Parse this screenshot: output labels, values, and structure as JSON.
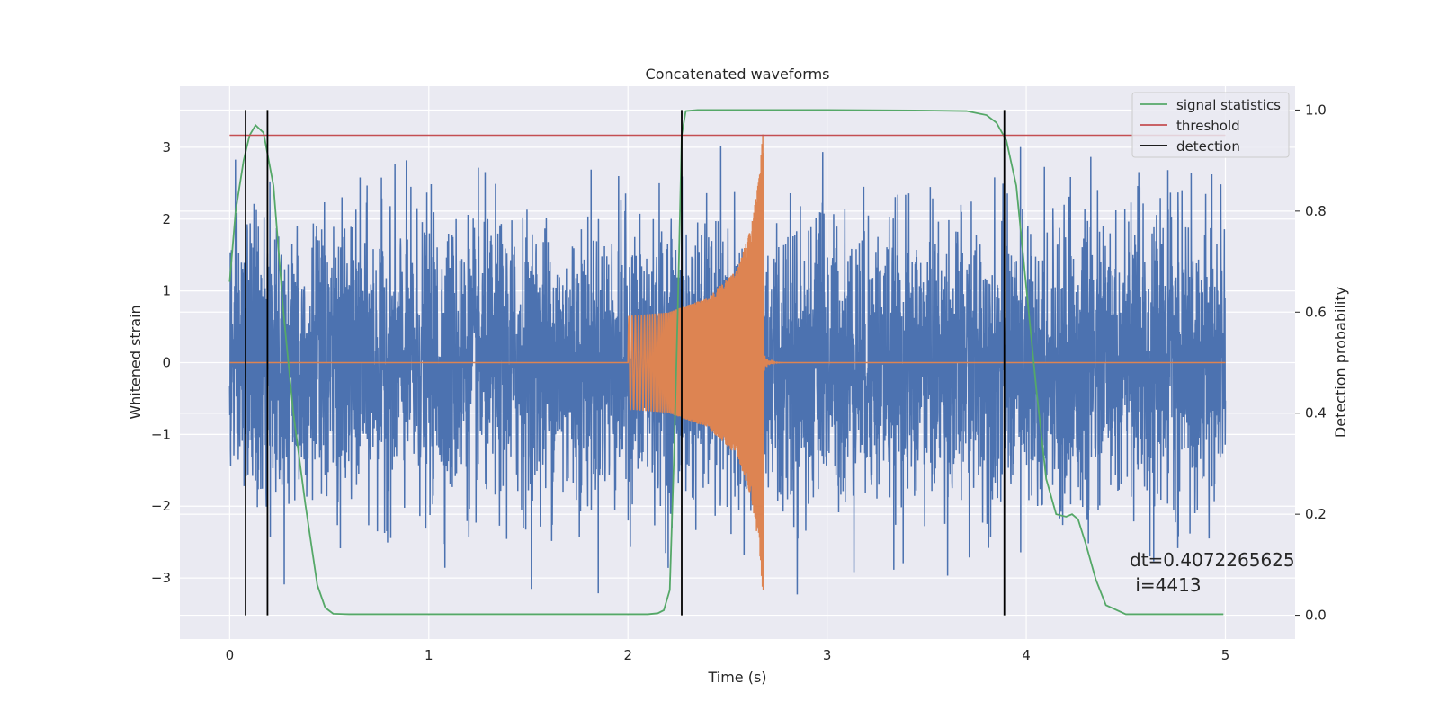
{
  "chart_data": {
    "type": "line",
    "title": "Concatenated waveforms",
    "xlabel": "Time (s)",
    "ylabel": "Whitened strain",
    "y2label": "Detection probability",
    "xlim": [
      -0.25,
      5.35
    ],
    "ylim": [
      -3.85,
      3.85
    ],
    "y2lim": [
      -0.047,
      1.047
    ],
    "xticks": [
      0,
      1,
      2,
      3,
      4,
      5
    ],
    "yticks": [
      -3,
      -2,
      -1,
      0,
      1,
      2,
      3
    ],
    "y2ticks": [
      0.0,
      0.2,
      0.4,
      0.6,
      0.8,
      1.0
    ],
    "xtick_labels": [
      "0",
      "1",
      "2",
      "3",
      "4",
      "5"
    ],
    "ytick_labels": [
      "−3",
      "−2",
      "−1",
      "0",
      "1",
      "2",
      "3"
    ],
    "y2tick_labels": [
      "0.0",
      "0.2",
      "0.4",
      "0.6",
      "0.8",
      "1.0"
    ],
    "grid": true,
    "legend_placement": "top-right",
    "legend": [
      "signal statistics",
      "threshold",
      "detection"
    ],
    "colors": {
      "noise": "#4c72b0",
      "injection": "#dd8452",
      "signal_statistics": "#55a868",
      "threshold": "#c44e52",
      "detection": "#000000",
      "background": "#eaeaf2",
      "grid": "#ffffff"
    },
    "noise_series": {
      "name": "",
      "x_range": [
        0,
        5
      ],
      "approx_y_range": [
        -3.5,
        3.1
      ]
    },
    "injection_series": {
      "name": "",
      "x_range": [
        2.0,
        2.68
      ],
      "envelope_x": [
        2.0,
        2.2,
        2.4,
        2.55,
        2.62,
        2.66,
        2.68
      ],
      "envelope_amp": [
        0.65,
        0.7,
        0.9,
        1.3,
        1.9,
        2.6,
        3.3
      ]
    },
    "series": [
      {
        "name": "signal statistics",
        "axis": "right",
        "x": [
          0.0,
          0.03,
          0.07,
          0.1,
          0.13,
          0.17,
          0.22,
          0.27,
          0.32,
          0.38,
          0.44,
          0.48,
          0.52,
          0.6,
          1.0,
          1.5,
          2.0,
          2.1,
          2.15,
          2.18,
          2.21,
          2.23,
          2.25,
          2.27,
          2.29,
          2.35,
          2.5,
          3.0,
          3.5,
          3.7,
          3.8,
          3.85,
          3.9,
          3.95,
          4.0,
          4.05,
          4.1,
          4.15,
          4.2,
          4.23,
          4.26,
          4.3,
          4.35,
          4.4,
          4.5,
          4.8,
          4.99
        ],
        "y": [
          0.66,
          0.8,
          0.9,
          0.95,
          0.97,
          0.955,
          0.85,
          0.6,
          0.4,
          0.22,
          0.06,
          0.015,
          0.003,
          0.002,
          0.002,
          0.002,
          0.002,
          0.002,
          0.004,
          0.01,
          0.05,
          0.3,
          0.6,
          0.95,
          0.998,
          1.0,
          1.0,
          1.0,
          0.999,
          0.998,
          0.99,
          0.975,
          0.94,
          0.85,
          0.65,
          0.45,
          0.27,
          0.2,
          0.195,
          0.2,
          0.19,
          0.14,
          0.07,
          0.02,
          0.002,
          0.002,
          0.002
        ]
      },
      {
        "name": "threshold",
        "axis": "right",
        "x": [
          0,
          5
        ],
        "y": [
          0.95,
          0.95
        ]
      }
    ],
    "detections": [
      0.08,
      0.19,
      2.27,
      3.89
    ],
    "annotation": "dt=0.4072265625\n i=4413"
  }
}
